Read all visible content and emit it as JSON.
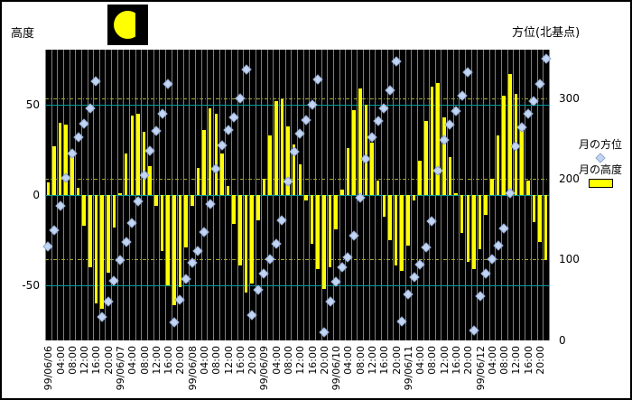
{
  "titles": {
    "left_axis_title": "高度",
    "right_axis_title": "方位(北基点)"
  },
  "legend": {
    "azimuth_label": "月の方位",
    "altitude_label": "月の高度"
  },
  "icons": {
    "moon_icon": "moon-phase-waning-half"
  },
  "colors": {
    "plot_background": "#000000",
    "vertical_grid": "#7f7f7f",
    "altitude_grid_teal": "#009999",
    "azimuth_grid_olive": "#a3a33a",
    "bar_fill": "#ffff00",
    "marker_fill": "#c3d5f2",
    "marker_edge": "#8fa8d0",
    "text": "#000000"
  },
  "chart_data": {
    "type": "combo",
    "sample_interval_hours": 2,
    "points_per_day": 12,
    "x_tick_labels": [
      "99/06/06",
      "04:00",
      "08:00",
      "12:00",
      "16:00",
      "20:00",
      "99/06/07",
      "04:00",
      "08:00",
      "12:00",
      "16:00",
      "20:00",
      "99/06/08",
      "04:00",
      "08:00",
      "12:00",
      "16:00",
      "20:00",
      "99/06/09",
      "04:00",
      "08:00",
      "12:00",
      "16:00",
      "20:00",
      "99/06/10",
      "04:00",
      "08:00",
      "12:00",
      "16:00",
      "20:00",
      "99/06/11",
      "04:00",
      "08:00",
      "12:00",
      "16:00",
      "20:00",
      "99/06/12",
      "04:00",
      "08:00",
      "12:00",
      "16:00",
      "20:00"
    ],
    "left_axis": {
      "title": "高度",
      "ticks": [
        50,
        0,
        -50
      ],
      "range": [
        -80,
        80
      ]
    },
    "right_axis": {
      "title": "方位(北基点)",
      "ticks": [
        300,
        200,
        100,
        0
      ],
      "range": [
        0,
        360
      ]
    },
    "grid": {
      "vertical": "every-category",
      "teal_lines_at_altitude": [
        50,
        0,
        -50
      ],
      "olive_dashdot_lines_at_azimuth": [
        300,
        200,
        100
      ]
    },
    "legend_position": "right",
    "series": [
      {
        "name": "月の高度",
        "type": "bar",
        "color": "#ffff00",
        "values": [
          7,
          27,
          40,
          39,
          21,
          4,
          -17,
          -40,
          -60,
          -63,
          -43,
          -18,
          1,
          23,
          44,
          45,
          35,
          16,
          -6,
          -31,
          -50,
          -61,
          -51,
          -29,
          -6,
          15,
          36,
          48,
          45,
          23,
          5,
          -16,
          -39,
          -54,
          -49,
          -14,
          9,
          33,
          52,
          53,
          38,
          28,
          17,
          -3,
          -27,
          -41,
          -52,
          -40,
          -19,
          3,
          26,
          47,
          59,
          50,
          29,
          8,
          -12,
          -25,
          -39,
          -42,
          -28,
          -3,
          19,
          41,
          60,
          62,
          43,
          21,
          1,
          -21,
          -37,
          -41,
          -30,
          -11,
          9,
          33,
          55,
          67,
          56,
          38,
          8,
          -15,
          -26,
          -36
        ]
      },
      {
        "name": "月の方位",
        "type": "scatter",
        "marker": "diamond",
        "color": "#c3d5f2",
        "values": [
          116,
          136,
          166,
          201,
          231,
          251,
          268,
          287,
          321,
          29,
          48,
          74,
          99,
          122,
          145,
          172,
          204,
          235,
          259,
          280,
          318,
          22,
          50,
          76,
          96,
          110,
          134,
          169,
          212,
          241,
          260,
          276,
          300,
          335,
          31,
          62,
          83,
          100,
          119,
          149,
          197,
          234,
          256,
          273,
          292,
          323,
          10,
          48,
          72,
          90,
          103,
          130,
          176,
          225,
          252,
          272,
          287,
          310,
          345,
          23,
          57,
          78,
          94,
          115,
          147,
          210,
          248,
          267,
          284,
          303,
          332,
          12,
          55,
          82,
          100,
          117,
          138,
          182,
          240,
          264,
          280,
          296,
          317,
          349
        ]
      }
    ]
  }
}
